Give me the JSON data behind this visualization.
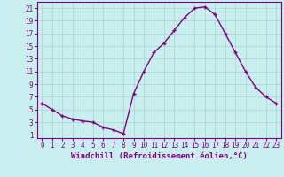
{
  "x": [
    0,
    1,
    2,
    3,
    4,
    5,
    6,
    7,
    8,
    9,
    10,
    11,
    12,
    13,
    14,
    15,
    16,
    17,
    18,
    19,
    20,
    21,
    22,
    23
  ],
  "y": [
    6,
    5,
    4,
    3.5,
    3.2,
    3,
    2.2,
    1.8,
    1.2,
    7.5,
    11,
    14,
    15.5,
    17.5,
    19.5,
    21,
    21.2,
    20,
    17,
    14,
    11,
    8.5,
    7,
    6
  ],
  "line_color": "#800080",
  "marker": "+",
  "marker_color": "#800080",
  "bg_color": "#c8eef0",
  "grid_color": "#a8d8c8",
  "xlabel": "Windchill (Refroidissement éolien,°C)",
  "ylabel_ticks": [
    1,
    3,
    5,
    7,
    9,
    11,
    13,
    15,
    17,
    19,
    21
  ],
  "xticks": [
    0,
    1,
    2,
    3,
    4,
    5,
    6,
    7,
    8,
    9,
    10,
    11,
    12,
    13,
    14,
    15,
    16,
    17,
    18,
    19,
    20,
    21,
    22,
    23
  ],
  "ylim": [
    0.5,
    22
  ],
  "xlim": [
    -0.5,
    23.5
  ],
  "xlabel_fontsize": 6.5,
  "tick_fontsize": 5.5,
  "line_width": 1.0,
  "marker_size": 3.5
}
